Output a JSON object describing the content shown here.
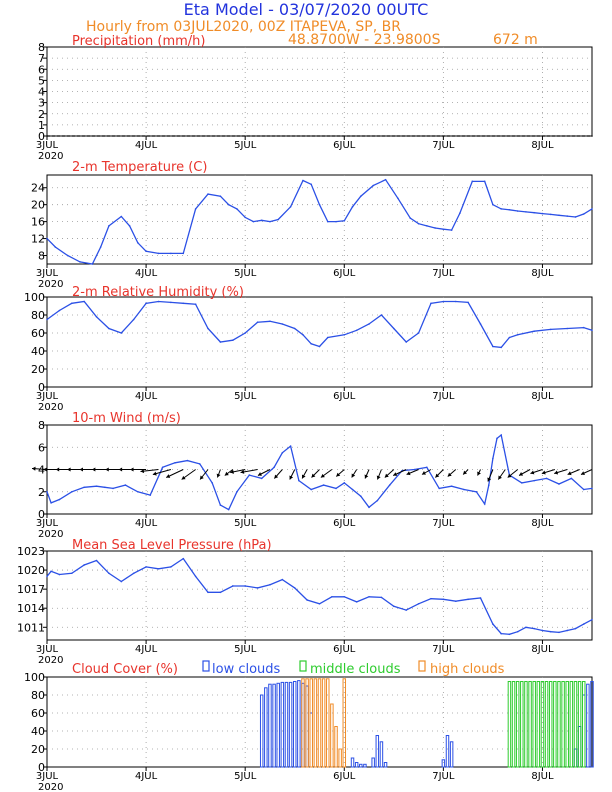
{
  "header": {
    "title": "Eta Model - 03/07/2020 00UTC",
    "subtitle": "Hourly from 03JUL2020, 00Z  ITAPEVA, SP, BR",
    "coords": "48.8700W - 23.9800S",
    "elevation": "672  m"
  },
  "colors": {
    "title": "#2233dd",
    "subtitle": "#f08c28",
    "panel_title": "#e8342c",
    "line": "#2b50e6",
    "low_clouds": "#2b50e6",
    "middle_clouds": "#2ecc2e",
    "high_clouds": "#f08c28",
    "wind_barb": "#000000"
  },
  "x_axis": {
    "days": [
      "3JUL",
      "4JUL",
      "5JUL",
      "6JUL",
      "7JUL",
      "8JUL"
    ],
    "year": "2020",
    "hours": [
      0,
      132
    ]
  },
  "chart_data": [
    {
      "type": "line",
      "name": "precip",
      "title": "Precipitation (mm/h)",
      "ylim": [
        0,
        8
      ],
      "yticks": [
        0,
        1,
        2,
        3,
        4,
        5,
        6,
        7,
        8
      ],
      "x": [
        0,
        132
      ],
      "values": [
        0,
        0
      ]
    },
    {
      "type": "line",
      "name": "temp",
      "title": "2-m Temperature (C)",
      "ylim": [
        6,
        27
      ],
      "yticks": [
        8,
        12,
        16,
        20,
        24
      ],
      "x": [
        0,
        2,
        5,
        8,
        11,
        13,
        15,
        18,
        20,
        22,
        24,
        27,
        30,
        33,
        36,
        39,
        42,
        44,
        46,
        48,
        50,
        52,
        54,
        56,
        59,
        62,
        64,
        66,
        68,
        70,
        72,
        74,
        76,
        79,
        82,
        85,
        88,
        90,
        92,
        94,
        96,
        98,
        100,
        103,
        106,
        108,
        110,
        112,
        114,
        116,
        118,
        120,
        122,
        124,
        126,
        128,
        130,
        132
      ],
      "values": [
        12,
        10,
        8,
        6.5,
        6,
        10,
        15,
        17.2,
        15,
        11,
        9,
        8.5,
        8.5,
        8.5,
        19,
        22.5,
        22,
        20,
        19,
        17,
        16,
        16.3,
        16,
        16.5,
        19.5,
        25.7,
        24.8,
        20,
        16,
        16,
        16.2,
        19.5,
        22,
        24.5,
        25.9,
        21.5,
        16.8,
        15.5,
        15,
        14.5,
        14.2,
        14,
        18,
        25.5,
        25.5,
        20,
        19,
        18.8,
        18.5,
        18.3,
        18.1,
        17.9,
        17.7,
        17.5,
        17.3,
        17.1,
        17.8,
        19
      ]
    },
    {
      "type": "line",
      "name": "rh",
      "title": "2-m Relative Humidity (%)",
      "ylim": [
        0,
        100
      ],
      "yticks": [
        0,
        20,
        40,
        60,
        80,
        100
      ],
      "x": [
        0,
        3,
        6,
        9,
        12,
        15,
        18,
        21,
        24,
        27,
        30,
        33,
        36,
        39,
        42,
        45,
        48,
        51,
        54,
        57,
        60,
        62,
        64,
        66,
        68,
        72,
        75,
        78,
        81,
        84,
        87,
        90,
        93,
        96,
        99,
        102,
        105,
        108,
        110,
        112,
        114,
        118,
        122,
        126,
        130,
        132
      ],
      "values": [
        75,
        85,
        93,
        95,
        78,
        65,
        60,
        75,
        93,
        95,
        94,
        93,
        92,
        65,
        50,
        52,
        60,
        72,
        73,
        70,
        65,
        58,
        48,
        45,
        55,
        58,
        63,
        70,
        80,
        65,
        50,
        60,
        93,
        95,
        95,
        94,
        70,
        45,
        44,
        55,
        58,
        62,
        64,
        65,
        66,
        63
      ]
    },
    {
      "type": "line",
      "name": "wind",
      "title": "10-m Wind (m/s)",
      "ylim": [
        0,
        8
      ],
      "yticks": [
        0,
        2,
        4,
        6,
        8
      ],
      "x": [
        0,
        1,
        3,
        6,
        9,
        12,
        14,
        16,
        19,
        22,
        25,
        28,
        31,
        34,
        37,
        40,
        42,
        44,
        46,
        49,
        52,
        55,
        57,
        59,
        61,
        64,
        67,
        70,
        72,
        74,
        76,
        78,
        80,
        83,
        86,
        89,
        92,
        95,
        98,
        101,
        104,
        106,
        107,
        108,
        109,
        110,
        112,
        115,
        118,
        121,
        124,
        127,
        130,
        132
      ],
      "values": [
        2,
        1,
        1.3,
        2,
        2.4,
        2.5,
        2.4,
        2.3,
        2.6,
        2,
        1.7,
        4.2,
        4.6,
        4.8,
        4.5,
        2.8,
        0.8,
        0.4,
        2,
        3.5,
        3.2,
        4.2,
        5.5,
        6.1,
        3,
        2.2,
        2.6,
        2.3,
        2.8,
        2.2,
        1.6,
        0.6,
        1.2,
        2.6,
        3.9,
        4,
        4.2,
        2.3,
        2.5,
        2.2,
        2,
        0.9,
        2.6,
        5,
        6.8,
        7.1,
        3.5,
        2.8,
        3,
        3.2,
        2.7,
        3.2,
        2.2,
        2.3
      ]
    },
    {
      "type": "line",
      "name": "mslp",
      "title": "Mean Sea Level Pressure (hPa)",
      "ylim": [
        1009,
        1023
      ],
      "yticks": [
        1011,
        1014,
        1017,
        1020,
        1023
      ],
      "x": [
        0,
        1,
        3,
        6,
        9,
        12,
        15,
        18,
        21,
        24,
        27,
        30,
        33,
        36,
        39,
        42,
        45,
        48,
        51,
        54,
        57,
        60,
        63,
        66,
        69,
        72,
        75,
        78,
        81,
        84,
        87,
        90,
        93,
        96,
        99,
        102,
        105,
        108,
        110,
        112,
        114,
        116,
        118,
        120,
        122,
        124,
        126,
        128,
        130,
        132
      ],
      "values": [
        1019,
        1019.8,
        1019.3,
        1019.5,
        1020.8,
        1021.5,
        1019.5,
        1018.2,
        1019.5,
        1020.5,
        1020.2,
        1020.5,
        1021.8,
        1019,
        1016.5,
        1016.5,
        1017.5,
        1017.5,
        1017.2,
        1017.7,
        1018.5,
        1017.2,
        1015.3,
        1014.7,
        1015.8,
        1015.8,
        1015,
        1015.8,
        1015.7,
        1014.3,
        1013.7,
        1014.7,
        1015.5,
        1015.4,
        1015.1,
        1015.4,
        1015.6,
        1011.5,
        1010,
        1009.9,
        1010.3,
        1011,
        1010.8,
        1010.5,
        1010.3,
        1010.2,
        1010.5,
        1010.8,
        1011.5,
        1012.2
      ]
    },
    {
      "type": "bar",
      "name": "clouds",
      "title": "Cloud Cover (%)",
      "ylim": [
        0,
        100
      ],
      "yticks": [
        0,
        20,
        40,
        60,
        80,
        100
      ],
      "legend": [
        "low clouds",
        "middle clouds",
        "high clouds"
      ],
      "series": [
        {
          "name": "low clouds",
          "x": [
            52,
            53,
            54,
            55,
            56,
            57,
            58,
            59,
            60,
            61,
            62,
            63,
            64,
            74,
            75,
            76,
            77,
            79,
            80,
            81,
            82,
            96,
            97,
            98,
            128,
            129,
            130,
            131,
            132
          ],
          "values": [
            80,
            88,
            92,
            92,
            93,
            94,
            94,
            94,
            95,
            96,
            93,
            90,
            60,
            10,
            5,
            3,
            3,
            10,
            35,
            28,
            5,
            8,
            35,
            28,
            20,
            45,
            80,
            92,
            95
          ]
        },
        {
          "name": "middle clouds",
          "x": [
            112,
            113,
            114,
            115,
            116,
            117,
            118,
            119,
            120,
            121,
            122,
            123,
            124,
            125,
            126,
            127,
            128,
            129,
            130
          ],
          "values": [
            95,
            95,
            95,
            95,
            95,
            95,
            95,
            95,
            95,
            95,
            95,
            95,
            95,
            95,
            95,
            95,
            95,
            95,
            95
          ]
        },
        {
          "name": "high clouds",
          "x": [
            62,
            63,
            64,
            65,
            66,
            67,
            68,
            69,
            70,
            71,
            72
          ],
          "values": [
            98,
            98,
            98,
            98,
            98,
            98,
            98,
            70,
            45,
            20,
            98
          ]
        }
      ]
    }
  ],
  "wind_vectors": {
    "x": [
      0,
      3,
      6,
      9,
      12,
      15,
      18,
      21,
      24,
      27,
      30,
      33,
      36,
      39,
      42,
      45,
      48,
      51,
      54,
      57,
      60,
      63,
      66,
      69,
      72,
      75,
      78,
      81,
      84,
      87,
      90,
      93,
      96,
      99,
      102,
      105,
      108,
      111,
      114,
      117,
      120,
      123,
      126,
      129,
      132
    ],
    "u": [
      -1.5,
      -1.6,
      -1.6,
      -1.7,
      -1.7,
      -1.7,
      -1.6,
      -1.5,
      -1.6,
      -1.8,
      -1.8,
      -1.7,
      -1.4,
      -0.8,
      -0.3,
      -0.8,
      -1.5,
      -1.7,
      -1.2,
      -0.8,
      -0.5,
      -0.5,
      -0.8,
      -1.1,
      -0.8,
      -0.5,
      -0.4,
      -0.4,
      -0.9,
      -1.3,
      -1.2,
      -0.9,
      -0.8,
      -0.8,
      -0.5,
      -0.3,
      -0.5,
      -0.7,
      -1.0,
      -1.1,
      -1.2,
      -1.3,
      -1.3,
      -1.2,
      -1.1
    ],
    "v": [
      0.1,
      0,
      0,
      0,
      0,
      0,
      0,
      0,
      0,
      -0.2,
      -0.5,
      -0.8,
      -1.0,
      -1.0,
      -0.8,
      -0.6,
      -0.3,
      -0.3,
      -0.6,
      -0.9,
      -1.0,
      -0.9,
      -0.8,
      -0.8,
      -0.7,
      -0.8,
      -0.9,
      -1.0,
      -0.8,
      -0.6,
      -0.5,
      -0.5,
      -0.8,
      -0.7,
      -0.5,
      -0.6,
      -1.2,
      -1.0,
      -0.8,
      -0.6,
      -0.4,
      -0.4,
      -0.4,
      -0.5,
      -0.5
    ]
  }
}
